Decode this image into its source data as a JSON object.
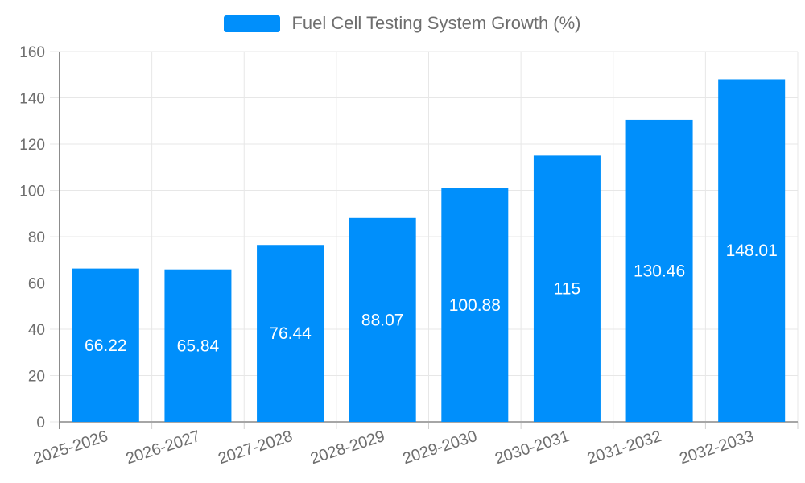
{
  "legend": {
    "label": "Fuel Cell Testing System Growth (%)"
  },
  "chart_data": {
    "type": "bar",
    "title": "Fuel Cell Testing System Growth (%)",
    "categories": [
      "2025-2026",
      "2026-2027",
      "2027-2028",
      "2028-2029",
      "2029-2030",
      "2030-2031",
      "2031-2032",
      "2032-2033"
    ],
    "values": [
      66.22,
      65.84,
      76.44,
      88.07,
      100.88,
      115,
      130.46,
      148.01
    ],
    "value_labels": [
      "66.22",
      "65.84",
      "76.44",
      "88.07",
      "100.88",
      "115",
      "130.46",
      "148.01"
    ],
    "xlabel": "",
    "ylabel": "",
    "ylim": [
      0,
      160
    ],
    "ytick_step": 20,
    "ytick_labels": [
      "0",
      "20",
      "40",
      "60",
      "80",
      "100",
      "120",
      "140",
      "160"
    ],
    "grid": true,
    "legend_position": "top",
    "colors": {
      "bar": "#008FFB",
      "grid": "#e7e7e7",
      "y_axis_line": "#8c8c8c",
      "x_axis_line": "#a6a6a6",
      "tick": "#d0d0d0",
      "axis_label_text": "#6e6e6e",
      "data_label_text": "#ffffff",
      "legend_text": "#6e6e6e"
    }
  }
}
